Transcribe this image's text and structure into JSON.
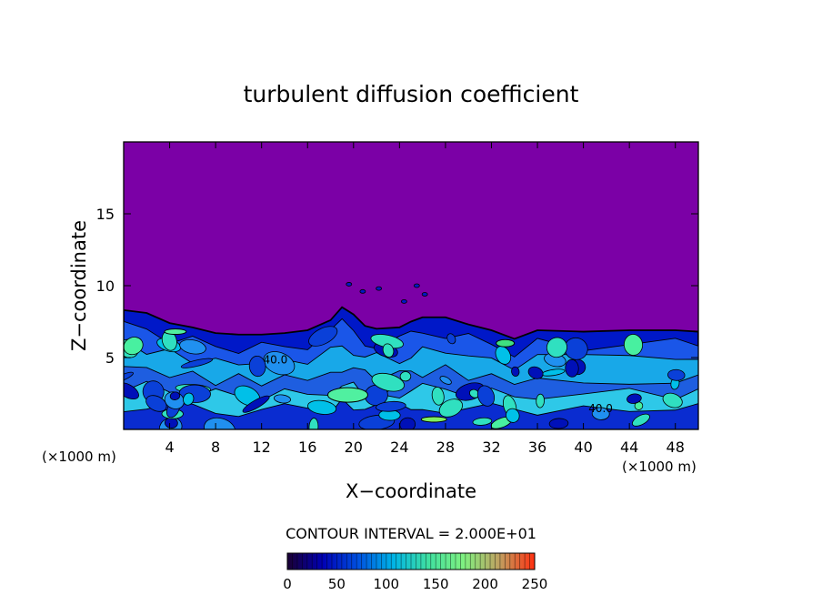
{
  "chart_data": {
    "type": "heatmap",
    "title": "turbulent diffusion coefficient",
    "xlabel": "X−coordinate",
    "ylabel": "Z−coordinate",
    "x_unit_left": "(×1000 m)",
    "x_unit_right": "(×1000 m)",
    "xlim": [
      0,
      50
    ],
    "ylim": [
      0,
      20
    ],
    "x_ticks": [
      4,
      8,
      12,
      16,
      20,
      24,
      28,
      32,
      36,
      40,
      44,
      48
    ],
    "y_ticks": [
      5,
      10,
      15
    ],
    "contour_interval_text": "CONTOUR INTERVAL = 2.000E+01",
    "contour_interval": 20,
    "colorbar": {
      "min": 0,
      "max": 250,
      "ticks": [
        0,
        50,
        100,
        150,
        200,
        250
      ],
      "colors": [
        "#1a0033",
        "#0000b4",
        "#0050e0",
        "#00b4e6",
        "#40e0a0",
        "#80f080",
        "#c0a060",
        "#ff3010"
      ]
    },
    "background_color": "#7b00a6",
    "mixing_layer_top": [
      [
        0,
        8.3
      ],
      [
        2,
        8.1
      ],
      [
        4,
        7.4
      ],
      [
        6,
        7.1
      ],
      [
        8,
        6.7
      ],
      [
        10,
        6.6
      ],
      [
        12,
        6.6
      ],
      [
        14,
        6.7
      ],
      [
        16,
        6.9
      ],
      [
        18,
        7.6
      ],
      [
        19,
        8.5
      ],
      [
        20,
        8.0
      ],
      [
        21,
        7.2
      ],
      [
        22,
        7.0
      ],
      [
        24,
        7.1
      ],
      [
        25,
        7.5
      ],
      [
        26,
        7.8
      ],
      [
        28,
        7.8
      ],
      [
        30,
        7.3
      ],
      [
        32,
        6.9
      ],
      [
        34,
        6.3
      ],
      [
        36,
        6.9
      ],
      [
        40,
        6.8
      ],
      [
        44,
        6.9
      ],
      [
        48,
        6.9
      ],
      [
        50,
        6.8
      ]
    ],
    "contour_labels": [
      {
        "text": "40.0",
        "x": 13.2,
        "z": 4.6
      },
      {
        "text": "40.0",
        "x": 41.5,
        "z": 1.2
      }
    ]
  }
}
